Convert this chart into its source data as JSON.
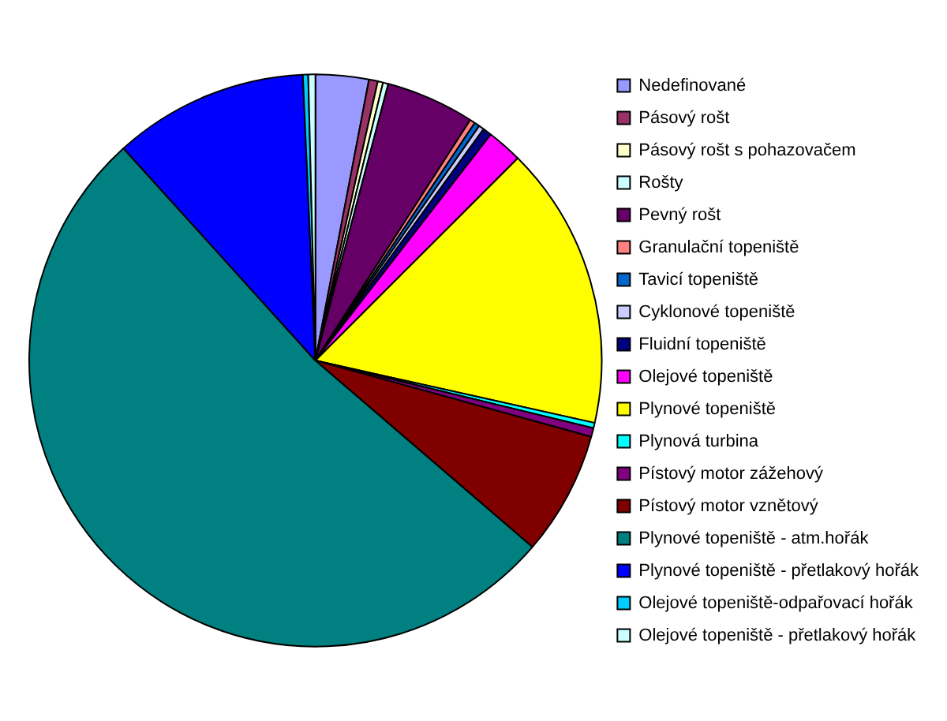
{
  "chart_data": {
    "type": "pie",
    "categories": [
      "Nedefinované",
      "Pásový rošt",
      "Pásový rošt s pohazovačem",
      "Rošty",
      "Pevný rošt",
      "Granulační topeniště",
      "Tavicí topeniště",
      "Cyklonové topeniště",
      "Fluidní topeniště",
      "Olejové topeniště",
      "Plynové topeniště",
      "Plynová turbina",
      "Pístový motor zážehový",
      "Pístový motor vznětový",
      "Plynové topeniště - atm.hořák",
      "Plynové topeniště - přetlakový hořák",
      "Olejové topeniště-odpařovací hořák",
      "Olejové topeniště - přetlakový hořák"
    ],
    "values": [
      3,
      0.5,
      0.3,
      0.3,
      5,
      0.3,
      0.3,
      0.3,
      0.5,
      2,
      16,
      0.3,
      0.5,
      7,
      52,
      11,
      0.3,
      0.4
    ],
    "colors": [
      "#9999ff",
      "#993366",
      "#ffffcc",
      "#ccffff",
      "#660066",
      "#ff8080",
      "#0066cc",
      "#ccccff",
      "#000080",
      "#ff00ff",
      "#ffff00",
      "#00ffff",
      "#800080",
      "#800000",
      "#008080",
      "#0000ff",
      "#00ccff",
      "#ccffff"
    ],
    "legend": "right"
  }
}
